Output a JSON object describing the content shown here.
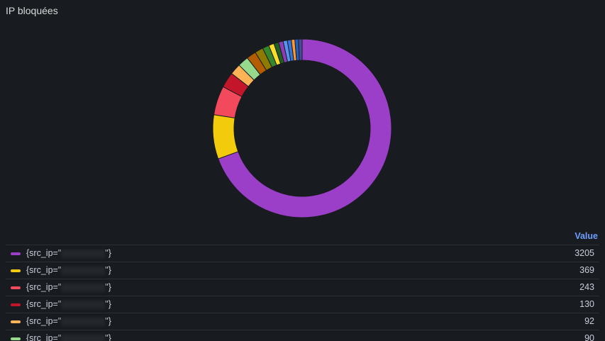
{
  "chart_data": {
    "type": "pie",
    "title": "IP bloquées",
    "value_header": "Value",
    "legend_prefix": "{src_ip=\"",
    "legend_suffix": "\"}",
    "values": [
      3205,
      369,
      243,
      130,
      92,
      90,
      80,
      70,
      55,
      45,
      40,
      38,
      35,
      33,
      30,
      30,
      30
    ],
    "colors": [
      "#9b3fc8",
      "#f2cc0c",
      "#f2495c",
      "#c4162a",
      "#ffb357",
      "#96d98d",
      "#b35c00",
      "#8f7a00",
      "#37872d",
      "#fade2a",
      "#1f6020",
      "#8f3bb8",
      "#5794f2",
      "#3274d9",
      "#ff9830",
      "#1f60c4",
      "#4a4a9a"
    ]
  }
}
